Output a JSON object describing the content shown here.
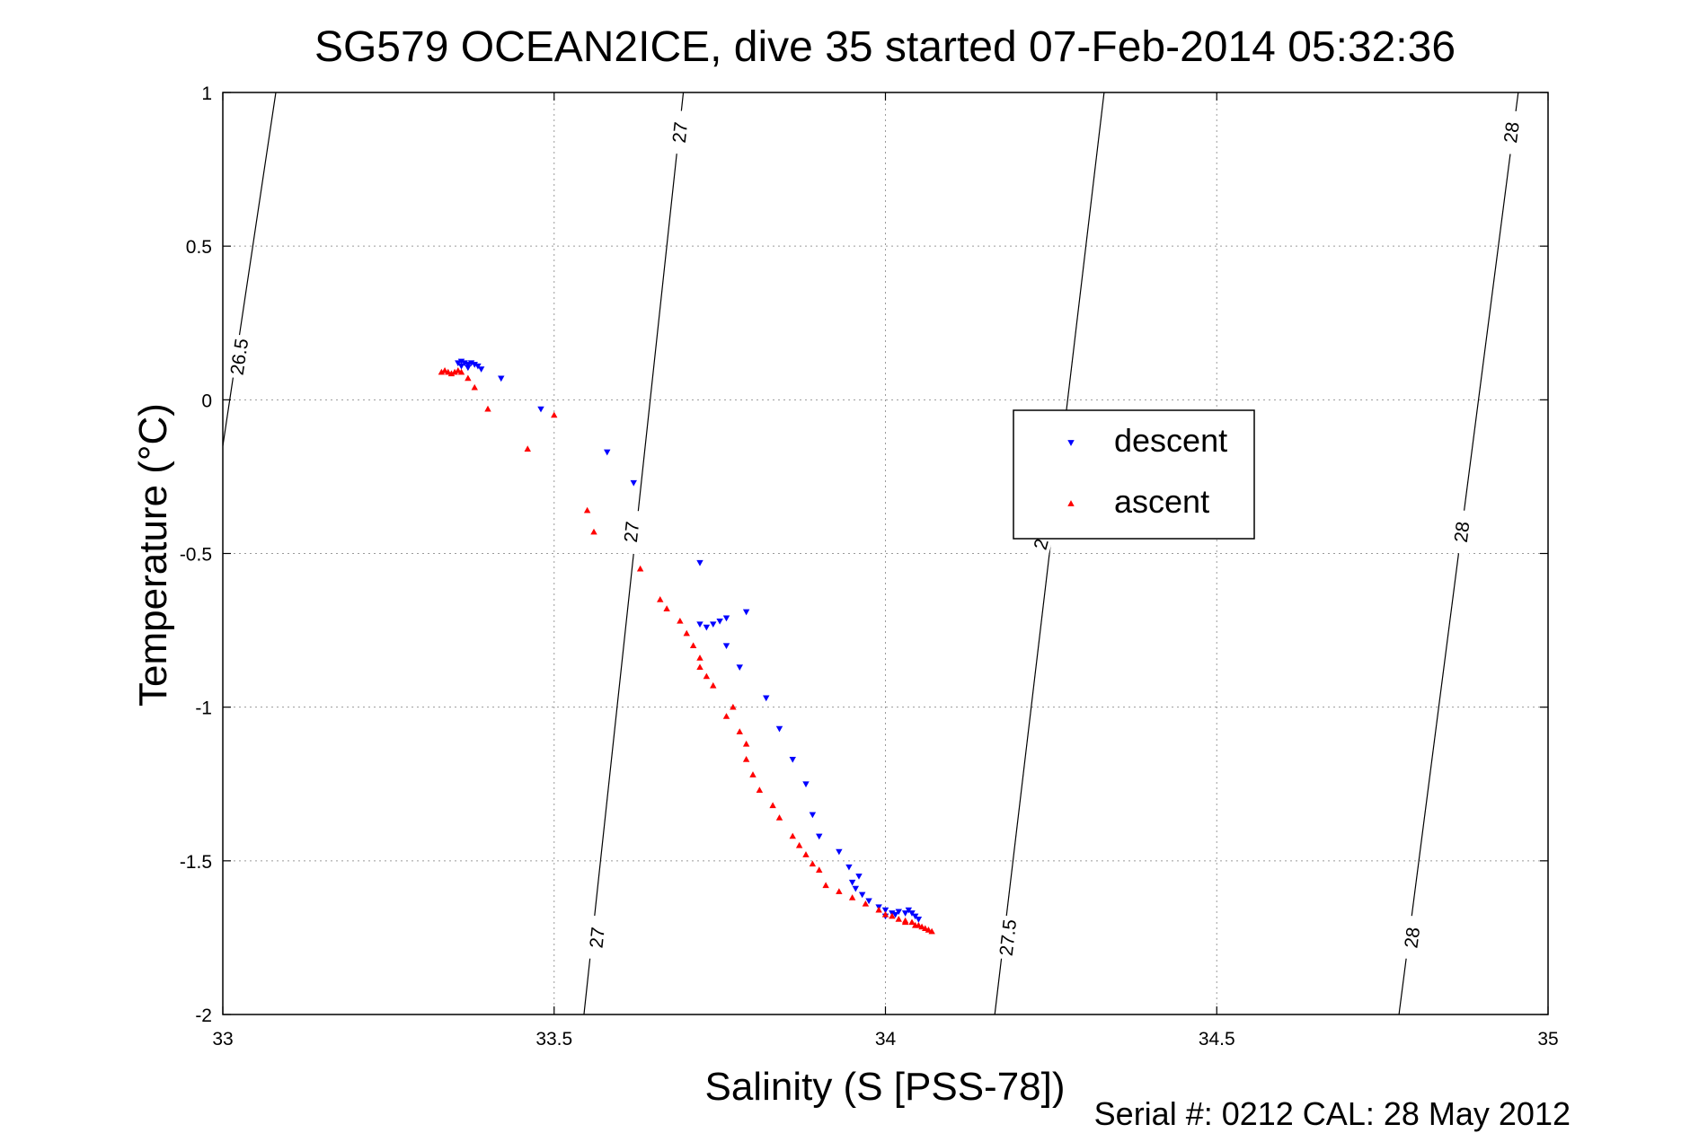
{
  "chart_data": {
    "type": "scatter",
    "title": "SG579 OCEAN2ICE, dive 35 started 07-Feb-2014 05:32:36",
    "xlabel": "Salinity (S [PSS-78])",
    "ylabel": "Temperature (°C)",
    "xlim": [
      33,
      35
    ],
    "ylim": [
      -2,
      1
    ],
    "x_ticks": [
      "33",
      "33.5",
      "34",
      "34.5",
      "35"
    ],
    "y_ticks": [
      "1",
      "0.5",
      "0",
      "-0.5",
      "-1",
      "-1.5",
      "-2"
    ],
    "grid": true,
    "legend_position": "center-right",
    "footer": "Serial #: 0212  CAL: 28 May 2012",
    "isopycnals": [
      {
        "label": "26.5",
        "points": [
          [
            33.0,
            -0.15
          ],
          [
            33.08,
            1.0
          ]
        ],
        "labels_at": [
          [
            33.025,
            0.14
          ]
        ]
      },
      {
        "label": "27",
        "points": [
          [
            33.545,
            -2.0
          ],
          [
            33.695,
            1.0
          ]
        ],
        "labels_at": [
          [
            33.565,
            -1.75
          ],
          [
            33.617,
            -0.43
          ],
          [
            33.69,
            0.87
          ]
        ]
      },
      {
        "label": "27.5",
        "points": [
          [
            34.165,
            -2.0
          ],
          [
            34.33,
            1.0
          ]
        ],
        "labels_at": [
          [
            34.185,
            -1.75
          ]
        ]
      },
      {
        "label": "2",
        "points": [],
        "labels_at": [
          [
            34.235,
            -0.47
          ]
        ]
      },
      {
        "label": "28",
        "points": [
          [
            34.775,
            -2.0
          ],
          [
            34.955,
            1.0
          ]
        ],
        "labels_at": [
          [
            34.795,
            -1.75
          ],
          [
            34.87,
            -0.43
          ],
          [
            34.945,
            0.87
          ]
        ]
      }
    ],
    "series": [
      {
        "name": "descent",
        "color": "#0000ff",
        "marker": "down-triangle",
        "points": [
          [
            33.355,
            0.12
          ],
          [
            33.36,
            0.125
          ],
          [
            33.365,
            0.12
          ],
          [
            33.37,
            0.115
          ],
          [
            33.375,
            0.12
          ],
          [
            33.38,
            0.115
          ],
          [
            33.385,
            0.11
          ],
          [
            33.37,
            0.105
          ],
          [
            33.36,
            0.11
          ],
          [
            33.39,
            0.1
          ],
          [
            33.42,
            0.07
          ],
          [
            33.48,
            -0.03
          ],
          [
            33.58,
            -0.17
          ],
          [
            33.62,
            -0.27
          ],
          [
            33.72,
            -0.53
          ],
          [
            33.79,
            -0.69
          ],
          [
            33.76,
            -0.71
          ],
          [
            33.75,
            -0.72
          ],
          [
            33.74,
            -0.73
          ],
          [
            33.73,
            -0.74
          ],
          [
            33.72,
            -0.73
          ],
          [
            33.76,
            -0.8
          ],
          [
            33.78,
            -0.87
          ],
          [
            33.82,
            -0.97
          ],
          [
            33.84,
            -1.07
          ],
          [
            33.86,
            -1.17
          ],
          [
            33.88,
            -1.25
          ],
          [
            33.89,
            -1.35
          ],
          [
            33.9,
            -1.42
          ],
          [
            33.93,
            -1.47
          ],
          [
            33.945,
            -1.52
          ],
          [
            33.96,
            -1.55
          ],
          [
            33.95,
            -1.57
          ],
          [
            33.955,
            -1.59
          ],
          [
            33.965,
            -1.61
          ],
          [
            33.975,
            -1.63
          ],
          [
            33.99,
            -1.65
          ],
          [
            34.0,
            -1.66
          ],
          [
            34.01,
            -1.67
          ],
          [
            34.02,
            -1.665
          ],
          [
            34.03,
            -1.67
          ],
          [
            34.035,
            -1.66
          ],
          [
            34.04,
            -1.67
          ],
          [
            34.045,
            -1.68
          ],
          [
            34.05,
            -1.69
          ],
          [
            34.0,
            -1.68
          ],
          [
            34.015,
            -1.675
          ]
        ]
      },
      {
        "name": "ascent",
        "color": "#ff0000",
        "marker": "up-triangle",
        "points": [
          [
            33.33,
            0.09
          ],
          [
            33.335,
            0.095
          ],
          [
            33.34,
            0.09
          ],
          [
            33.345,
            0.085
          ],
          [
            33.35,
            0.09
          ],
          [
            33.355,
            0.095
          ],
          [
            33.36,
            0.09
          ],
          [
            33.37,
            0.07
          ],
          [
            33.38,
            0.04
          ],
          [
            33.4,
            -0.03
          ],
          [
            33.46,
            -0.16
          ],
          [
            33.5,
            -0.05
          ],
          [
            33.55,
            -0.36
          ],
          [
            33.56,
            -0.43
          ],
          [
            33.63,
            -0.55
          ],
          [
            33.66,
            -0.65
          ],
          [
            33.67,
            -0.68
          ],
          [
            33.69,
            -0.72
          ],
          [
            33.7,
            -0.76
          ],
          [
            33.71,
            -0.8
          ],
          [
            33.72,
            -0.84
          ],
          [
            33.72,
            -0.87
          ],
          [
            33.73,
            -0.9
          ],
          [
            33.74,
            -0.93
          ],
          [
            33.77,
            -1.0
          ],
          [
            33.76,
            -1.03
          ],
          [
            33.78,
            -1.08
          ],
          [
            33.79,
            -1.12
          ],
          [
            33.79,
            -1.17
          ],
          [
            33.8,
            -1.22
          ],
          [
            33.81,
            -1.27
          ],
          [
            33.83,
            -1.32
          ],
          [
            33.84,
            -1.36
          ],
          [
            33.86,
            -1.42
          ],
          [
            33.87,
            -1.45
          ],
          [
            33.88,
            -1.48
          ],
          [
            33.89,
            -1.51
          ],
          [
            33.9,
            -1.53
          ],
          [
            33.91,
            -1.58
          ],
          [
            33.93,
            -1.6
          ],
          [
            33.95,
            -1.62
          ],
          [
            33.97,
            -1.64
          ],
          [
            33.99,
            -1.66
          ],
          [
            34.01,
            -1.68
          ],
          [
            34.02,
            -1.69
          ],
          [
            34.03,
            -1.695
          ],
          [
            34.04,
            -1.7
          ],
          [
            34.05,
            -1.71
          ],
          [
            34.055,
            -1.715
          ],
          [
            34.06,
            -1.72
          ],
          [
            34.065,
            -1.725
          ],
          [
            34.07,
            -1.73
          ],
          [
            34.03,
            -1.7
          ],
          [
            34.045,
            -1.71
          ],
          [
            34.0,
            -1.675
          ]
        ]
      }
    ]
  }
}
